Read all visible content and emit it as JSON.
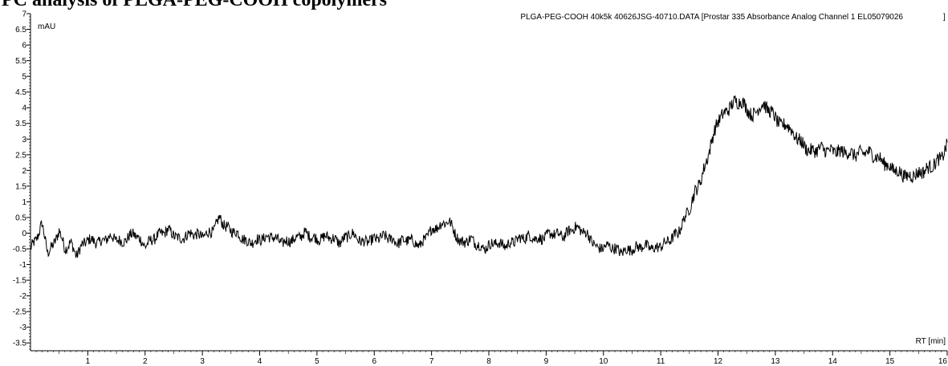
{
  "page_title": "PC analysis of PLGA-PEG-COOH copolymers",
  "chart_data": {
    "type": "line",
    "title": "PLGA-PEG-COOH 40k5k 40626JSG-40710.DATA [Prostar 335 Absorbance Analog Channel 1 EL05079026",
    "title_close": "]",
    "ylabel": "mAU",
    "xlabel": "RT [min]",
    "xlim": [
      0,
      16
    ],
    "ylim": [
      -3.75,
      7
    ],
    "x_ticks": [
      1,
      2,
      3,
      4,
      5,
      6,
      7,
      8,
      9,
      10,
      11,
      12,
      13,
      14,
      15,
      16
    ],
    "x_tick_labels": [
      "1",
      "2",
      "3",
      "4",
      "5",
      "6",
      "7",
      "8",
      "9",
      "10",
      "11",
      "12",
      "13",
      "14",
      "15",
      "16"
    ],
    "y_ticks": [
      7,
      6.5,
      6,
      5.5,
      5,
      4.5,
      4,
      3.5,
      3,
      2.5,
      2,
      1.5,
      1,
      0.5,
      0,
      -0.5,
      -1,
      -1.5,
      -2,
      -2.5,
      -3,
      -3.5
    ],
    "y_tick_labels": [
      "7",
      "6.5",
      "6",
      "5.5",
      "5",
      "4.5",
      "4",
      "3.5",
      "3",
      "2.5",
      "2",
      "1.5",
      "1",
      "0.5",
      "0",
      "-0.5",
      "-1",
      "-1.5",
      "-2",
      "-2.5",
      "-3",
      "-3.5"
    ],
    "grid": false,
    "line_color": "#000000",
    "series": [
      {
        "x": [
          0.0,
          0.1,
          0.2,
          0.3,
          0.4,
          0.5,
          0.6,
          0.7,
          0.8,
          0.9,
          1.0,
          1.2,
          1.4,
          1.6,
          1.8,
          2.0,
          2.2,
          2.4,
          2.6,
          2.8,
          3.0,
          3.2,
          3.3,
          3.4,
          3.6,
          3.8,
          4.0,
          4.2,
          4.4,
          4.6,
          4.8,
          5.0,
          5.2,
          5.4,
          5.6,
          5.8,
          6.0,
          6.2,
          6.4,
          6.6,
          6.8,
          7.0,
          7.2,
          7.3,
          7.5,
          7.7,
          7.9,
          8.1,
          8.3,
          8.5,
          8.7,
          8.9,
          9.1,
          9.3,
          9.5,
          9.7,
          9.9,
          10.1,
          10.3,
          10.5,
          10.7,
          10.9,
          11.1,
          11.3,
          11.5,
          11.6,
          11.7,
          11.8,
          11.9,
          12.0,
          12.1,
          12.2,
          12.3,
          12.4,
          12.5,
          12.6,
          12.7,
          12.8,
          12.9,
          13.0,
          13.1,
          13.2,
          13.3,
          13.4,
          13.5,
          13.6,
          13.8,
          14.0,
          14.2,
          14.4,
          14.6,
          14.8,
          15.0,
          15.1,
          15.3,
          15.5,
          15.7,
          15.9,
          16.0
        ],
        "y": [
          -0.5,
          -0.2,
          0.3,
          -0.6,
          -0.4,
          0.1,
          -0.5,
          -0.3,
          -0.7,
          -0.4,
          -0.2,
          -0.3,
          -0.1,
          -0.3,
          0.0,
          -0.4,
          -0.1,
          0.1,
          -0.2,
          0.0,
          -0.1,
          0.1,
          0.5,
          0.2,
          0.0,
          -0.3,
          -0.2,
          -0.1,
          -0.3,
          -0.2,
          0.0,
          -0.2,
          -0.1,
          -0.3,
          0.0,
          -0.3,
          -0.2,
          -0.1,
          -0.3,
          -0.2,
          -0.4,
          0.1,
          0.3,
          0.4,
          -0.3,
          -0.2,
          -0.5,
          -0.3,
          -0.4,
          -0.2,
          -0.1,
          -0.2,
          0.0,
          -0.1,
          0.2,
          0.0,
          -0.5,
          -0.4,
          -0.6,
          -0.5,
          -0.4,
          -0.5,
          -0.3,
          0.0,
          0.8,
          1.3,
          1.7,
          2.3,
          3.0,
          3.6,
          3.8,
          4.0,
          4.2,
          4.2,
          4.0,
          3.7,
          4.0,
          4.1,
          3.9,
          3.7,
          3.4,
          3.5,
          3.2,
          3.0,
          2.8,
          2.6,
          2.7,
          2.6,
          2.6,
          2.5,
          2.6,
          2.4,
          2.1,
          2.0,
          1.8,
          1.9,
          2.1,
          2.4,
          2.8
        ]
      }
    ]
  }
}
